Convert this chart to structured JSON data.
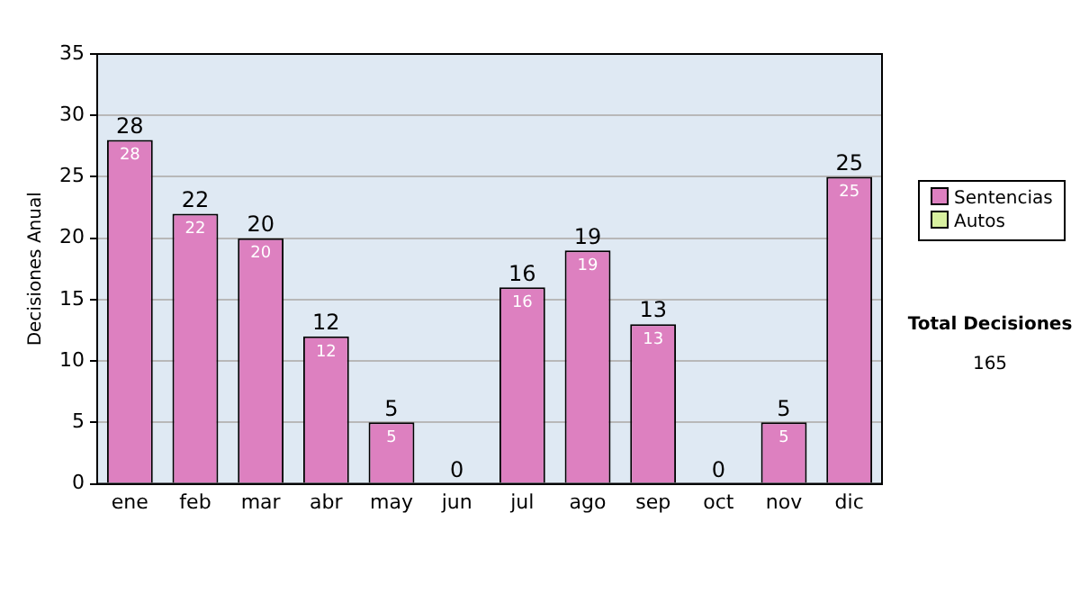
{
  "chart_data": {
    "type": "bar",
    "stacked": true,
    "ylabel": "Decisiones Anual",
    "categories": [
      "ene",
      "feb",
      "mar",
      "abr",
      "may",
      "jun",
      "jul",
      "ago",
      "sep",
      "oct",
      "nov",
      "dic"
    ],
    "series": [
      {
        "name": "Sentencias",
        "color": "#dd80c0",
        "values": [
          28,
          22,
          20,
          12,
          5,
          0,
          16,
          19,
          13,
          0,
          5,
          25
        ],
        "value_labels": [
          "28",
          "22",
          "20",
          "12",
          "5",
          null,
          "16",
          "19",
          "13",
          null,
          "5",
          "25"
        ]
      },
      {
        "name": "Autos",
        "color": "#d8f0a0",
        "values": [
          0,
          0,
          0,
          0,
          0,
          0,
          0,
          0,
          0,
          0,
          0,
          0
        ]
      }
    ],
    "totals": [
      "28",
      "22",
      "20",
      "12",
      "5",
      "0",
      "16",
      "19",
      "13",
      "0",
      "5",
      "25"
    ],
    "ylim": [
      0,
      35
    ],
    "yticks": [
      0,
      5,
      10,
      15,
      20,
      25,
      30,
      35
    ],
    "grid": "y",
    "legend": "right",
    "annotations": [
      "Total Decisiones",
      "165"
    ]
  }
}
